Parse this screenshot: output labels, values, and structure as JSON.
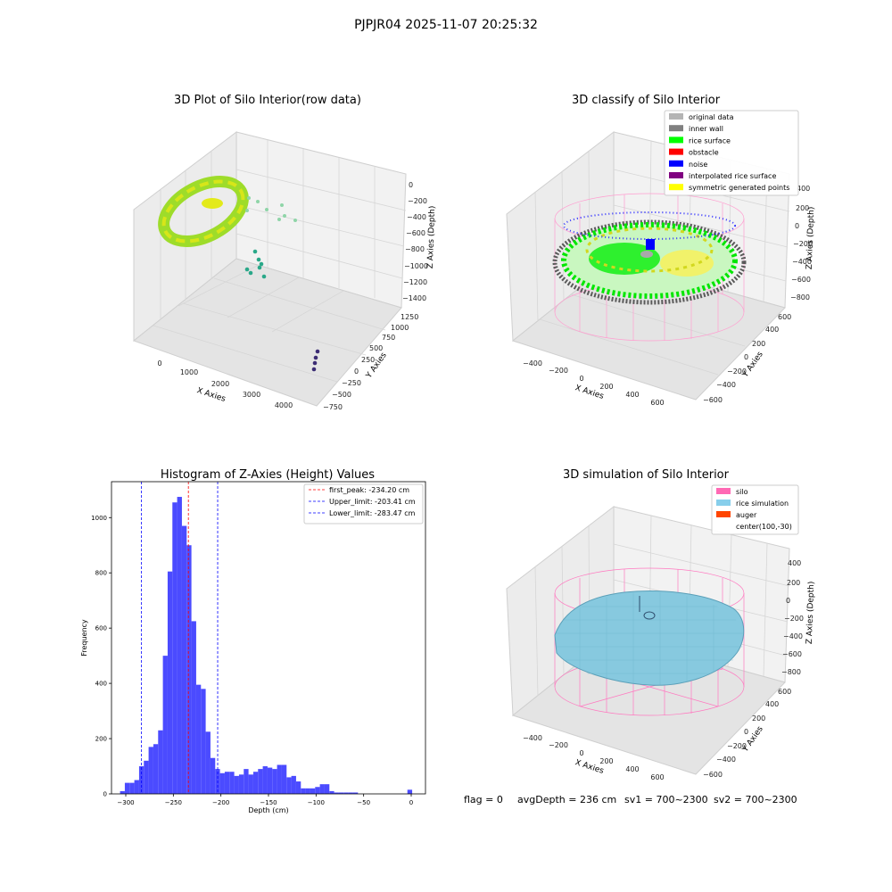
{
  "suptitle": "PJPJR04 2025-11-07 20:25:32",
  "footer": {
    "flag": "flag = 0",
    "avg_depth": "avgDepth = 236 cm",
    "sv1": "sv1 = 700~2300",
    "sv2": "sv2 = 700~2300"
  },
  "panels": {
    "raw": {
      "title": "3D Plot of Silo Interior(row data)",
      "xlabel": "X Axies",
      "ylabel": "Y Axies",
      "zlabel": "Z Axies (Depth)",
      "xticks": [
        "0",
        "1000",
        "2000",
        "3000",
        "4000"
      ],
      "yticks": [
        "−750",
        "−500",
        "−250",
        "0",
        "250",
        "500",
        "750",
        "1000",
        "1250"
      ],
      "zticks": [
        "0",
        "−200",
        "−400",
        "−600",
        "−800",
        "−1000",
        "−1200",
        "−1400"
      ]
    },
    "classify": {
      "title": "3D classify of Silo Interior",
      "xlabel": "X Axies",
      "ylabel": "Y Axies",
      "zlabel": "Z Axies (Depth)",
      "xticks": [
        "−400",
        "−200",
        "0",
        "200",
        "400",
        "600"
      ],
      "yticks": [
        "−600",
        "−400",
        "−200",
        "0",
        "200",
        "400",
        "600"
      ],
      "zticks": [
        "400",
        "200",
        "0",
        "−200",
        "−400",
        "−600",
        "−800"
      ],
      "legend": [
        {
          "label": "original data",
          "color": "#b4b4b4"
        },
        {
          "label": "inner wall",
          "color": "#808080"
        },
        {
          "label": "rice surface",
          "color": "#00ff00"
        },
        {
          "label": "obstacle",
          "color": "#ff0000"
        },
        {
          "label": "noise",
          "color": "#0000ff"
        },
        {
          "label": "interpolated rice surface",
          "color": "#800080"
        },
        {
          "label": "symmetric generated points",
          "color": "#ffff00"
        }
      ]
    },
    "simulation": {
      "title": "3D simulation of Silo Interior",
      "xlabel": "X Axies",
      "ylabel": "Y Axies",
      "zlabel": "Z Axies (Depth)",
      "xticks": [
        "−400",
        "−200",
        "0",
        "200",
        "400",
        "600"
      ],
      "yticks": [
        "−600",
        "−400",
        "−200",
        "0",
        "200",
        "400",
        "600"
      ],
      "zticks": [
        "400",
        "200",
        "0",
        "−200",
        "−400",
        "−600",
        "−800"
      ],
      "legend": [
        {
          "label": "silo",
          "color": "#ff69b4"
        },
        {
          "label": "rice simulation",
          "color": "#87ceeb"
        },
        {
          "label": "auger",
          "color": "#ff4500"
        },
        {
          "label": "center(100,-30)",
          "color": ""
        }
      ]
    }
  },
  "chart_data": [
    {
      "type": "histogram",
      "title": "Histogram of Z-Axies (Height) Values",
      "xlabel": "Depth (cm)",
      "ylabel": "Frequency",
      "xlim": [
        -315,
        15
      ],
      "ylim": [
        0,
        1130
      ],
      "xticks": [
        -300,
        -250,
        -200,
        -150,
        -100,
        -50,
        0
      ],
      "yticks": [
        0,
        200,
        400,
        600,
        800,
        1000
      ],
      "bar_color": "#4b4bff",
      "bins": [
        {
          "x0": -306,
          "x1": -301,
          "count": 10
        },
        {
          "x0": -301,
          "x1": -296,
          "count": 40
        },
        {
          "x0": -296,
          "x1": -291,
          "count": 40
        },
        {
          "x0": -291,
          "x1": -286,
          "count": 50
        },
        {
          "x0": -286,
          "x1": -281,
          "count": 100
        },
        {
          "x0": -281,
          "x1": -276,
          "count": 120
        },
        {
          "x0": -276,
          "x1": -271,
          "count": 170
        },
        {
          "x0": -271,
          "x1": -266,
          "count": 180
        },
        {
          "x0": -266,
          "x1": -261,
          "count": 230
        },
        {
          "x0": -261,
          "x1": -256,
          "count": 500
        },
        {
          "x0": -256,
          "x1": -251,
          "count": 805
        },
        {
          "x0": -251,
          "x1": -246,
          "count": 1055
        },
        {
          "x0": -246,
          "x1": -241,
          "count": 1075
        },
        {
          "x0": -241,
          "x1": -236,
          "count": 970
        },
        {
          "x0": -236,
          "x1": -231,
          "count": 900
        },
        {
          "x0": -231,
          "x1": -226,
          "count": 625
        },
        {
          "x0": -226,
          "x1": -221,
          "count": 395
        },
        {
          "x0": -221,
          "x1": -216,
          "count": 380
        },
        {
          "x0": -216,
          "x1": -211,
          "count": 225
        },
        {
          "x0": -211,
          "x1": -206,
          "count": 130
        },
        {
          "x0": -206,
          "x1": -201,
          "count": 90
        },
        {
          "x0": -201,
          "x1": -196,
          "count": 75
        },
        {
          "x0": -196,
          "x1": -191,
          "count": 80
        },
        {
          "x0": -191,
          "x1": -186,
          "count": 80
        },
        {
          "x0": -186,
          "x1": -181,
          "count": 65
        },
        {
          "x0": -181,
          "x1": -176,
          "count": 70
        },
        {
          "x0": -176,
          "x1": -171,
          "count": 90
        },
        {
          "x0": -171,
          "x1": -166,
          "count": 70
        },
        {
          "x0": -166,
          "x1": -161,
          "count": 80
        },
        {
          "x0": -161,
          "x1": -156,
          "count": 90
        },
        {
          "x0": -156,
          "x1": -151,
          "count": 100
        },
        {
          "x0": -151,
          "x1": -146,
          "count": 95
        },
        {
          "x0": -146,
          "x1": -141,
          "count": 90
        },
        {
          "x0": -141,
          "x1": -136,
          "count": 105
        },
        {
          "x0": -136,
          "x1": -131,
          "count": 105
        },
        {
          "x0": -131,
          "x1": -126,
          "count": 60
        },
        {
          "x0": -126,
          "x1": -121,
          "count": 65
        },
        {
          "x0": -121,
          "x1": -116,
          "count": 45
        },
        {
          "x0": -116,
          "x1": -111,
          "count": 20
        },
        {
          "x0": -111,
          "x1": -106,
          "count": 20
        },
        {
          "x0": -106,
          "x1": -101,
          "count": 20
        },
        {
          "x0": -101,
          "x1": -96,
          "count": 25
        },
        {
          "x0": -96,
          "x1": -91,
          "count": 35
        },
        {
          "x0": -91,
          "x1": -86,
          "count": 35
        },
        {
          "x0": -86,
          "x1": -81,
          "count": 10
        },
        {
          "x0": -81,
          "x1": -76,
          "count": 5
        },
        {
          "x0": -76,
          "x1": -71,
          "count": 5
        },
        {
          "x0": -71,
          "x1": -66,
          "count": 5
        },
        {
          "x0": -66,
          "x1": -61,
          "count": 5
        },
        {
          "x0": -61,
          "x1": -56,
          "count": 5
        },
        {
          "x0": -4,
          "x1": 1,
          "count": 15
        }
      ],
      "vlines": [
        {
          "x": -234.2,
          "color": "#ff0000",
          "label": "first_peak: -234.20 cm"
        },
        {
          "x": -203.41,
          "color": "#0000ff",
          "label": "Upper_limit: -203.41 cm"
        },
        {
          "x": -283.47,
          "color": "#0000ff",
          "label": "Lower_limit: -283.47 cm"
        }
      ],
      "legend_position": "upper right"
    }
  ]
}
